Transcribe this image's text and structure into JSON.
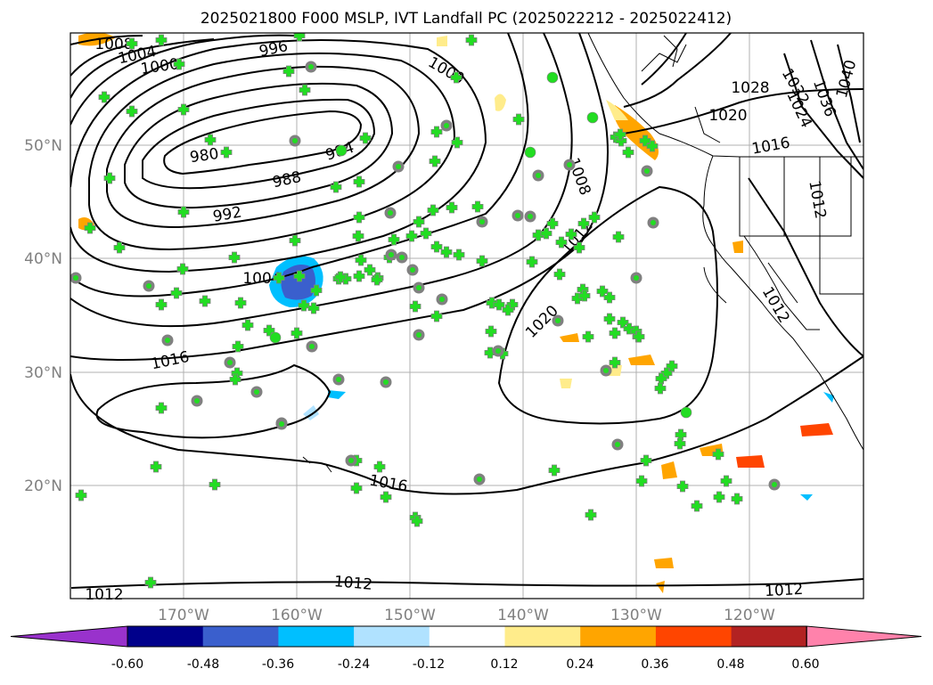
{
  "title": "2025021800 F000 MSLP, IVT Landfall PC (2025022212 - 2025022412)",
  "lat_labels": [
    "50°N",
    "40°N",
    "30°N",
    "20°N"
  ],
  "lon_labels": [
    "170°W",
    "160°W",
    "150°W",
    "140°W",
    "130°W",
    "120°W"
  ],
  "isobar_labels": [
    "1008",
    "1004",
    "1000",
    "996",
    "1000",
    "1028",
    "1020",
    "1024",
    "1036",
    "1040",
    "1032",
    "980",
    "984",
    "988",
    "992",
    "1016",
    "1008",
    "1012",
    "1004",
    "1012",
    "1012",
    "1020",
    "1016",
    "1016",
    "1012",
    "1012",
    "1012"
  ],
  "colorbar": {
    "tick_labels": [
      "-0.60",
      "-0.48",
      "-0.36",
      "-0.24",
      "-0.12",
      "0.12",
      "0.24",
      "0.36",
      "0.48",
      "0.60"
    ],
    "colors": [
      "#9932cc",
      "#00008b",
      "#3a5fcd",
      "#00bfff",
      "#b0e2ff",
      "#ffffff",
      "#ffec8b",
      "#ffa500",
      "#ff4500",
      "#b22222",
      "#ff82ab"
    ]
  },
  "marker_colors": {
    "fill": "#22dd22",
    "edge": "#808080"
  }
}
